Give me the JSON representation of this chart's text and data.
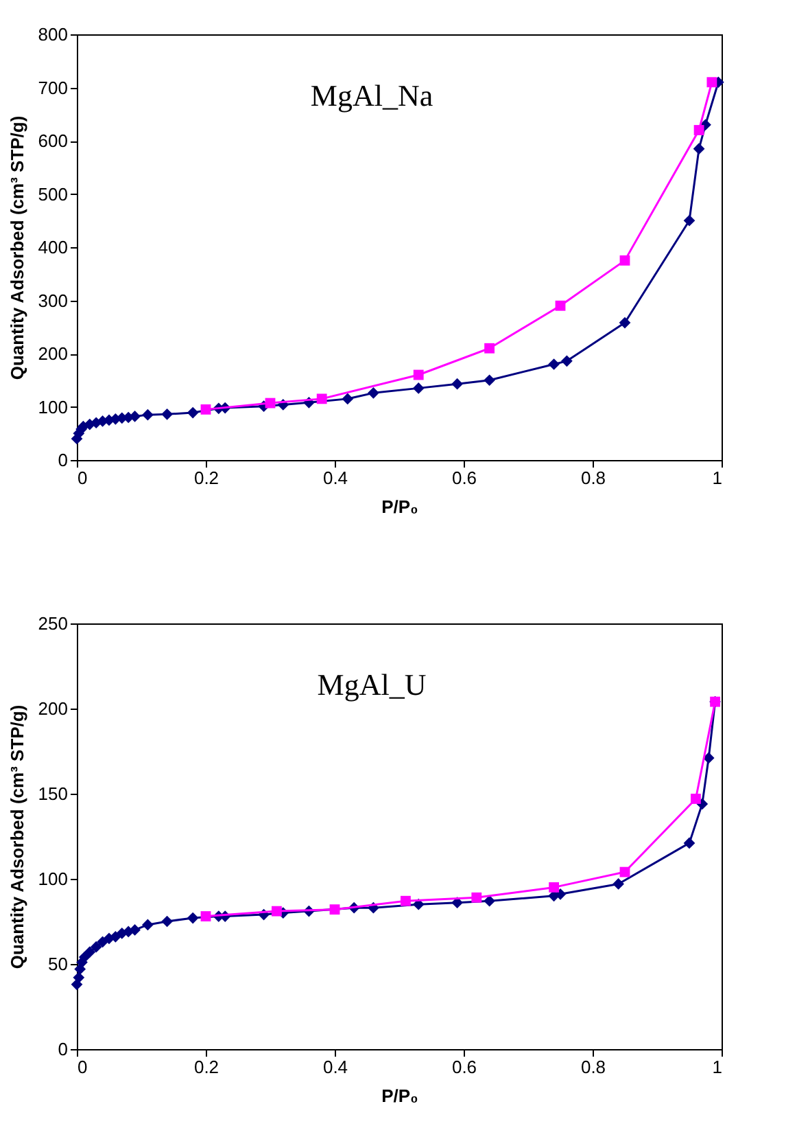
{
  "chart_data": [
    {
      "type": "line",
      "xlabel": "P/P₀",
      "ylabel": "Quantity Adsorbed (cm³ STP/g)",
      "annotations": [
        "MgAl_Na"
      ],
      "xlim": [
        0,
        1
      ],
      "xticks": [
        0,
        0.2,
        0.4,
        0.6,
        0.8,
        1
      ],
      "ylim": [
        0,
        800
      ],
      "yticks": [
        0,
        100,
        200,
        300,
        400,
        500,
        600,
        700,
        800
      ],
      "grid": false,
      "legend": false,
      "line_style": "solid",
      "series": [
        {
          "color": "#000080",
          "marker": "diamond",
          "x": [
            0.0,
            0.003,
            0.007,
            0.01,
            0.02,
            0.03,
            0.04,
            0.05,
            0.06,
            0.07,
            0.08,
            0.09,
            0.11,
            0.14,
            0.18,
            0.22,
            0.23,
            0.29,
            0.32,
            0.36,
            0.42,
            0.46,
            0.53,
            0.59,
            0.64,
            0.74,
            0.76,
            0.85,
            0.95,
            0.965,
            0.975,
            0.995
          ],
          "values": [
            40,
            50,
            58,
            63,
            67,
            70,
            73,
            75,
            77,
            79,
            80,
            82,
            85,
            86,
            89,
            97,
            98,
            101,
            104,
            108,
            115,
            126,
            135,
            143,
            150,
            180,
            186,
            258,
            450,
            585,
            630,
            710
          ]
        },
        {
          "color": "#ff00ff",
          "marker": "square",
          "x": [
            0.2,
            0.3,
            0.38,
            0.53,
            0.64,
            0.75,
            0.85,
            0.965,
            0.985
          ],
          "values": [
            95,
            107,
            115,
            160,
            210,
            290,
            375,
            620,
            710
          ]
        }
      ]
    },
    {
      "type": "line",
      "xlabel": "P/P₀",
      "ylabel": "Quantity Adsorbed (cm³ STP/g)",
      "annotations": [
        "MgAl_U"
      ],
      "xlim": [
        0,
        1
      ],
      "xticks": [
        0,
        0.2,
        0.4,
        0.6,
        0.8,
        1
      ],
      "ylim": [
        0,
        250
      ],
      "yticks": [
        0,
        50,
        100,
        150,
        200,
        250
      ],
      "grid": false,
      "legend": false,
      "line_style": "solid",
      "series": [
        {
          "color": "#000080",
          "marker": "diamond",
          "x": [
            0.0,
            0.003,
            0.005,
            0.008,
            0.012,
            0.02,
            0.03,
            0.04,
            0.05,
            0.06,
            0.07,
            0.08,
            0.09,
            0.11,
            0.14,
            0.18,
            0.22,
            0.23,
            0.29,
            0.32,
            0.36,
            0.43,
            0.46,
            0.53,
            0.59,
            0.64,
            0.74,
            0.75,
            0.84,
            0.95,
            0.97,
            0.98,
            0.99
          ],
          "values": [
            38,
            42,
            47,
            51,
            54,
            57,
            60,
            63,
            65,
            66,
            68,
            69,
            70,
            73,
            75,
            77,
            78,
            78,
            79,
            80,
            81,
            83,
            83,
            85,
            86,
            87,
            90,
            91,
            97,
            121,
            144,
            171,
            204
          ]
        },
        {
          "color": "#ff00ff",
          "marker": "square",
          "x": [
            0.2,
            0.31,
            0.4,
            0.51,
            0.62,
            0.74,
            0.85,
            0.96,
            0.99
          ],
          "values": [
            78,
            81,
            82,
            87,
            89,
            95,
            104,
            147,
            204
          ]
        }
      ]
    }
  ]
}
